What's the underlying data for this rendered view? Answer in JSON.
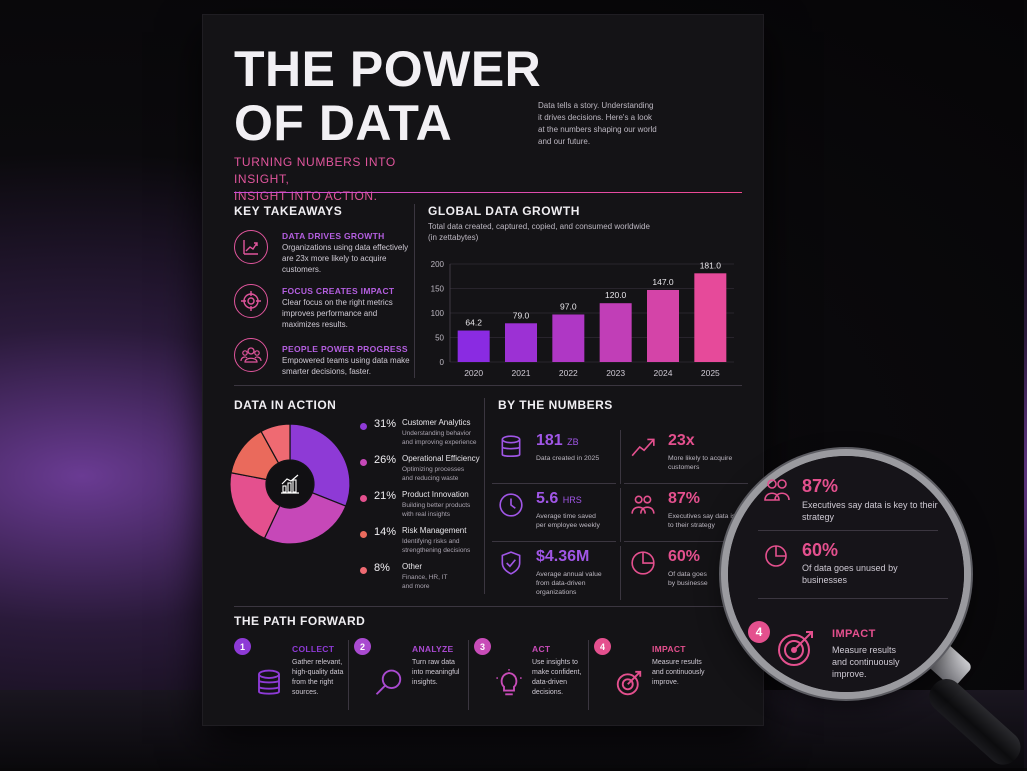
{
  "poster": {
    "title_line1": "THE POWER",
    "title_line2": "OF DATA",
    "subtitle_line1": "TURNING NUMBERS INTO INSIGHT,",
    "subtitle_line2": "INSIGHT INTO ACTION.",
    "intro": "Data tells a story. Understanding it drives decisions. Here's a look at the numbers shaping our world and our future."
  },
  "key_takeaways": {
    "title": "KEY TAKEAWAYS",
    "items": [
      {
        "heading": "DATA DRIVES GROWTH",
        "text": "Organizations using data effectively are 23x more likely to acquire customers.",
        "icon": "growth-chart-icon"
      },
      {
        "heading": "FOCUS CREATES IMPACT",
        "text": "Clear focus on the right metrics improves performance and maximizes results.",
        "icon": "target-crosshair-icon"
      },
      {
        "heading": "PEOPLE POWER PROGRESS",
        "text": "Empowered teams using data make smarter decisions, faster.",
        "icon": "people-icon"
      }
    ]
  },
  "growth": {
    "title": "GLOBAL DATA GROWTH",
    "subtitle": "Total data created, captured, copied, and consumed worldwide (in zettabytes)"
  },
  "chart_data": {
    "type": "bar",
    "categories": [
      "2020",
      "2021",
      "2022",
      "2023",
      "2024",
      "2025"
    ],
    "values": [
      64.2,
      79.0,
      97.0,
      120.0,
      147.0,
      181.0
    ],
    "value_labels": [
      "64.2",
      "79.0",
      "97.0",
      "120.0",
      "147.0",
      "181.0"
    ],
    "y_ticks": [
      "0",
      "50",
      "100",
      "150",
      "200"
    ],
    "ylim": [
      0,
      200
    ],
    "grid": true,
    "colors": [
      "#8a2be2",
      "#e64a9a"
    ]
  },
  "action": {
    "title": "DATA IN ACTION",
    "segments": [
      {
        "pct": "31%",
        "value": 31,
        "name": "Customer Analytics",
        "desc1": "Understanding behavior",
        "desc2": "and improving experience",
        "color": "#8e3ad6"
      },
      {
        "pct": "26%",
        "value": 26,
        "name": "Operational Efficiency",
        "desc1": "Optimizing processes",
        "desc2": "and reducing waste",
        "color": "#c648b8"
      },
      {
        "pct": "21%",
        "value": 21,
        "name": "Product Innovation",
        "desc1": "Building better products",
        "desc2": "with real insights",
        "color": "#e4508e"
      },
      {
        "pct": "14%",
        "value": 14,
        "name": "Risk Management",
        "desc1": "Identifying risks and",
        "desc2": "strengthening decisions",
        "color": "#ea6a5c"
      },
      {
        "pct": "8%",
        "value": 8,
        "name": "Other",
        "desc1": "Finance, HR, IT",
        "desc2": "and more",
        "color": "#ef6a72"
      }
    ]
  },
  "numbers": {
    "title": "BY THE NUMBERS",
    "stats": [
      {
        "value": "181",
        "unit": "ZB",
        "desc1": "Data created in 2025",
        "desc2": "",
        "desc3": "",
        "color": "#a056e6",
        "icon": "database-icon"
      },
      {
        "value": "23x",
        "unit": "",
        "desc1": "More likely to acquire",
        "desc2": "customers",
        "desc3": "",
        "color": "#e4508e",
        "icon": "trend-up-icon"
      },
      {
        "value": "5.6",
        "unit": "HRS",
        "desc1": "Average time saved",
        "desc2": "per employee weekly",
        "desc3": "",
        "color": "#a056e6",
        "icon": "clock-icon"
      },
      {
        "value": "87%",
        "unit": "",
        "desc1": "Executives say data is",
        "desc2": "to their strategy",
        "desc3": "",
        "color": "#e4508e",
        "icon": "team-icon"
      },
      {
        "value": "$4.36M",
        "unit": "",
        "desc1": "Average annual value",
        "desc2": "from data-driven",
        "desc3": "organizations",
        "color": "#a056e6",
        "icon": "shield-check-icon"
      },
      {
        "value": "60%",
        "unit": "",
        "desc1": "Of data goes",
        "desc2": "by businesse",
        "desc3": "",
        "color": "#e4508e",
        "icon": "pie-chart-icon"
      }
    ]
  },
  "path": {
    "title": "THE PATH FORWARD",
    "steps": [
      {
        "num": "1",
        "heading": "COLLECT",
        "text": "Gather relevant, high-quality data from the right sources.",
        "color": "#8e3ad6",
        "icon": "database-stack-icon"
      },
      {
        "num": "2",
        "heading": "ANALYZE",
        "text": "Turn raw data into meaningful insights.",
        "color": "#a94ad0",
        "icon": "magnifier-icon"
      },
      {
        "num": "3",
        "heading": "ACT",
        "text": "Use insights to make confident, data-driven decisions.",
        "color": "#c84cb8",
        "icon": "lightbulb-icon"
      },
      {
        "num": "4",
        "heading": "IMPACT",
        "text": "Measure results and continuously improve.",
        "color": "#e4508e",
        "icon": "target-arrow-icon"
      }
    ]
  },
  "magnifier": {
    "stat1_value": "87%",
    "stat1_desc": "Executives say data is key to their strategy",
    "stat2_value": "60%",
    "stat2_desc": "Of data goes unused by businesses",
    "step_num": "4",
    "step_heading": "IMPACT",
    "step_text": "Measure results and continuously improve."
  }
}
